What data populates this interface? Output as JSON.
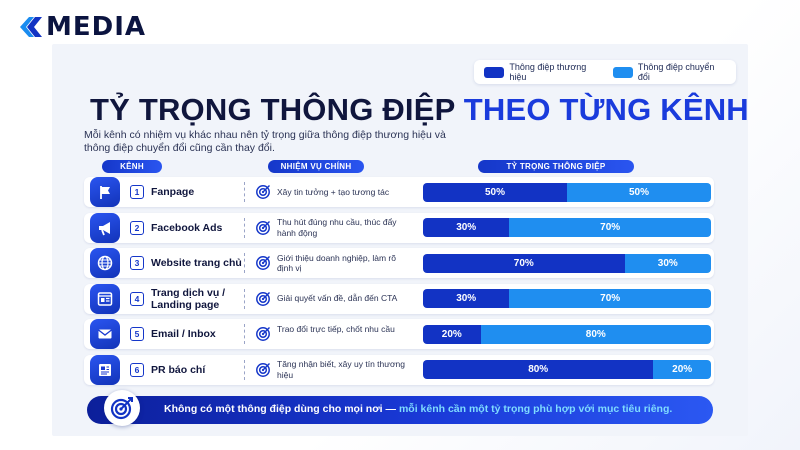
{
  "brand": {
    "logo_text": "MEDIA",
    "colors": {
      "primary": "#1233c4",
      "secondary": "#1f8ef0",
      "dark": "#10163d"
    }
  },
  "legend": {
    "brand_label": "Thông điệp thương hiệu",
    "conversion_label": "Thông điệp chuyển đổi"
  },
  "title": {
    "part1": "TỶ TRỌNG THÔNG ĐIỆP",
    "part2": "THEO TỪNG KÊNH"
  },
  "subtitle": "Mỗi kênh có nhiệm vụ khác nhau nên tỷ trọng giữa thông điệp thương hiệu và thông điệp chuyển đổi cũng cần thay đổi.",
  "headers": {
    "channel": "KÊNH",
    "task": "NHIỆM VỤ CHÍNH",
    "ratio": "TỶ TRỌNG THÔNG ĐIỆP"
  },
  "rows": [
    {
      "num": "1",
      "channel": "Fanpage",
      "task": "Xây tin tưởng + tạo tương tác",
      "icon": "flag-icon"
    },
    {
      "num": "2",
      "channel": "Facebook Ads",
      "task": "Thu hút đúng nhu cầu, thúc đẩy hành động",
      "icon": "megaphone-icon"
    },
    {
      "num": "3",
      "channel": "Website trang chủ",
      "task": "Giới thiệu doanh nghiệp, làm rõ định vị",
      "icon": "globe-icon"
    },
    {
      "num": "4",
      "channel": "Trang dịch vụ / Landing page",
      "task": "Giải quyết vấn đề, dẫn đến CTA",
      "icon": "landing-page-icon"
    },
    {
      "num": "5",
      "channel": "Email / Inbox",
      "task": "Trao đổi trực tiếp, chốt nhu cầu",
      "icon": "email-icon"
    },
    {
      "num": "6",
      "channel": "PR báo chí",
      "task": "Tăng nhận biết, xây uy tín thương hiệu",
      "icon": "newspaper-icon"
    }
  ],
  "footer": {
    "part1": "Không có một thông điệp dùng cho mọi nơi — ",
    "part2": "mỗi kênh cần một tỷ trọng phù hợp với mục tiêu riêng."
  },
  "chart_data": {
    "type": "bar",
    "stacked": true,
    "orientation": "horizontal",
    "categories": [
      "Fanpage",
      "Facebook Ads",
      "Website trang chủ",
      "Trang dịch vụ / Landing page",
      "Email / Inbox",
      "PR báo chí"
    ],
    "series": [
      {
        "name": "Thông điệp thương hiệu",
        "values": [
          50,
          30,
          70,
          30,
          20,
          80
        ],
        "color": "#1233c4"
      },
      {
        "name": "Thông điệp chuyển đổi",
        "values": [
          50,
          70,
          30,
          70,
          80,
          20
        ],
        "color": "#1f8ef0"
      }
    ],
    "title": "TỶ TRỌNG THÔNG ĐIỆP THEO TỪNG KÊNH",
    "unit": "%",
    "xlim": [
      0,
      100
    ],
    "legend_position": "top-right"
  }
}
